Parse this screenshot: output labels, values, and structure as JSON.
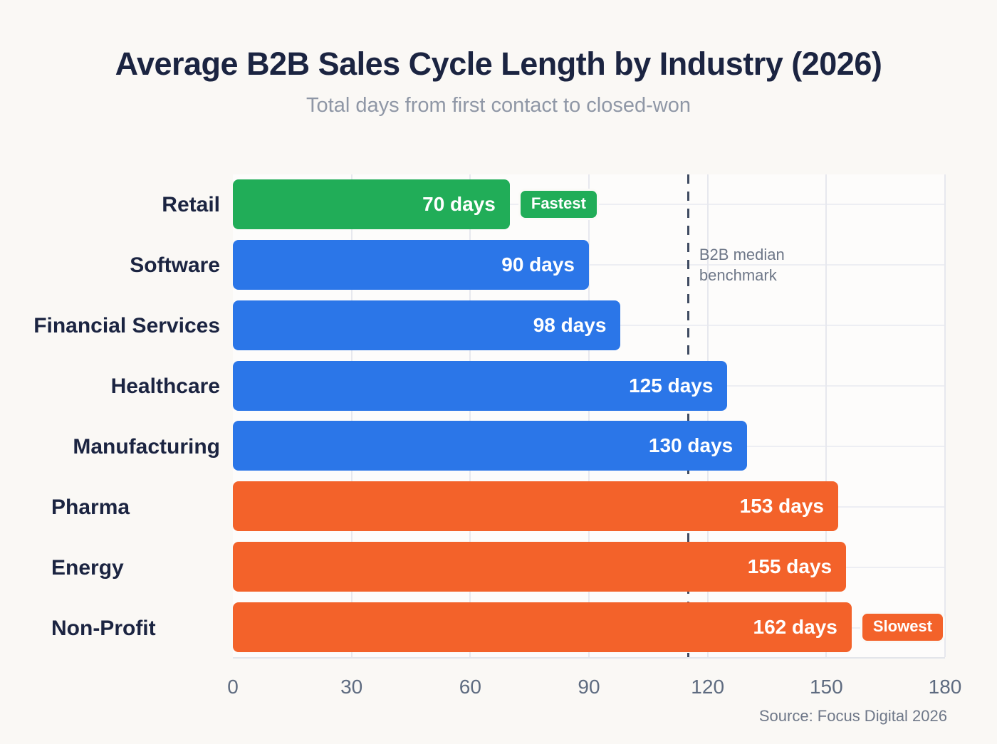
{
  "chart_data": {
    "type": "bar",
    "orientation": "horizontal",
    "title": "Average B2B Sales Cycle Length by Industry (2026)",
    "subtitle": "Total days from first contact to closed-won",
    "xlim": [
      0,
      180
    ],
    "x_ticks": [
      "0",
      "30",
      "60",
      "90",
      "120",
      "150",
      "180"
    ],
    "grid": true,
    "legend": false,
    "categories": [
      "Retail",
      "Software",
      "Financial Services",
      "Healthcare",
      "Manufacturing",
      "Pharma",
      "Energy",
      "Non-Profit"
    ],
    "values": [
      70,
      90,
      98,
      125,
      130,
      153,
      155,
      162
    ],
    "bars": [
      {
        "label": "Retail",
        "value": 70,
        "display": "70 days",
        "color": "#21ad58",
        "badge": "Fastest"
      },
      {
        "label": "Software",
        "value": 90,
        "display": "90 days",
        "color": "#2b76e8",
        "badge": null
      },
      {
        "label": "Financial Services",
        "value": 98,
        "display": "98 days",
        "color": "#2b76e8",
        "badge": null
      },
      {
        "label": "Healthcare",
        "value": 125,
        "display": "125 days",
        "color": "#2b76e8",
        "badge": null
      },
      {
        "label": "Manufacturing",
        "value": 130,
        "display": "130 days",
        "color": "#2b76e8",
        "badge": null
      },
      {
        "label": "Pharma",
        "value": 153,
        "display": "153 days",
        "color": "#f3622a",
        "badge": null
      },
      {
        "label": "Energy",
        "value": 155,
        "display": "155 days",
        "color": "#f3622a",
        "badge": null
      },
      {
        "label": "Non-Profit",
        "value": 162,
        "display": "162 days",
        "color": "#f3622a",
        "badge": "Slowest"
      }
    ],
    "reference_line": {
      "value": 115,
      "label_line1": "B2B median",
      "label_line2": "benchmark",
      "color": "#3f4b61"
    },
    "source": "Source: Focus Digital 2026",
    "colors": {
      "fastest": "#21ad58",
      "standard": "#2b76e8",
      "slowest": "#f3622a",
      "title": "#1b2441",
      "axis_text": "#5e6b80",
      "gridline": "#e7e8ee"
    }
  }
}
